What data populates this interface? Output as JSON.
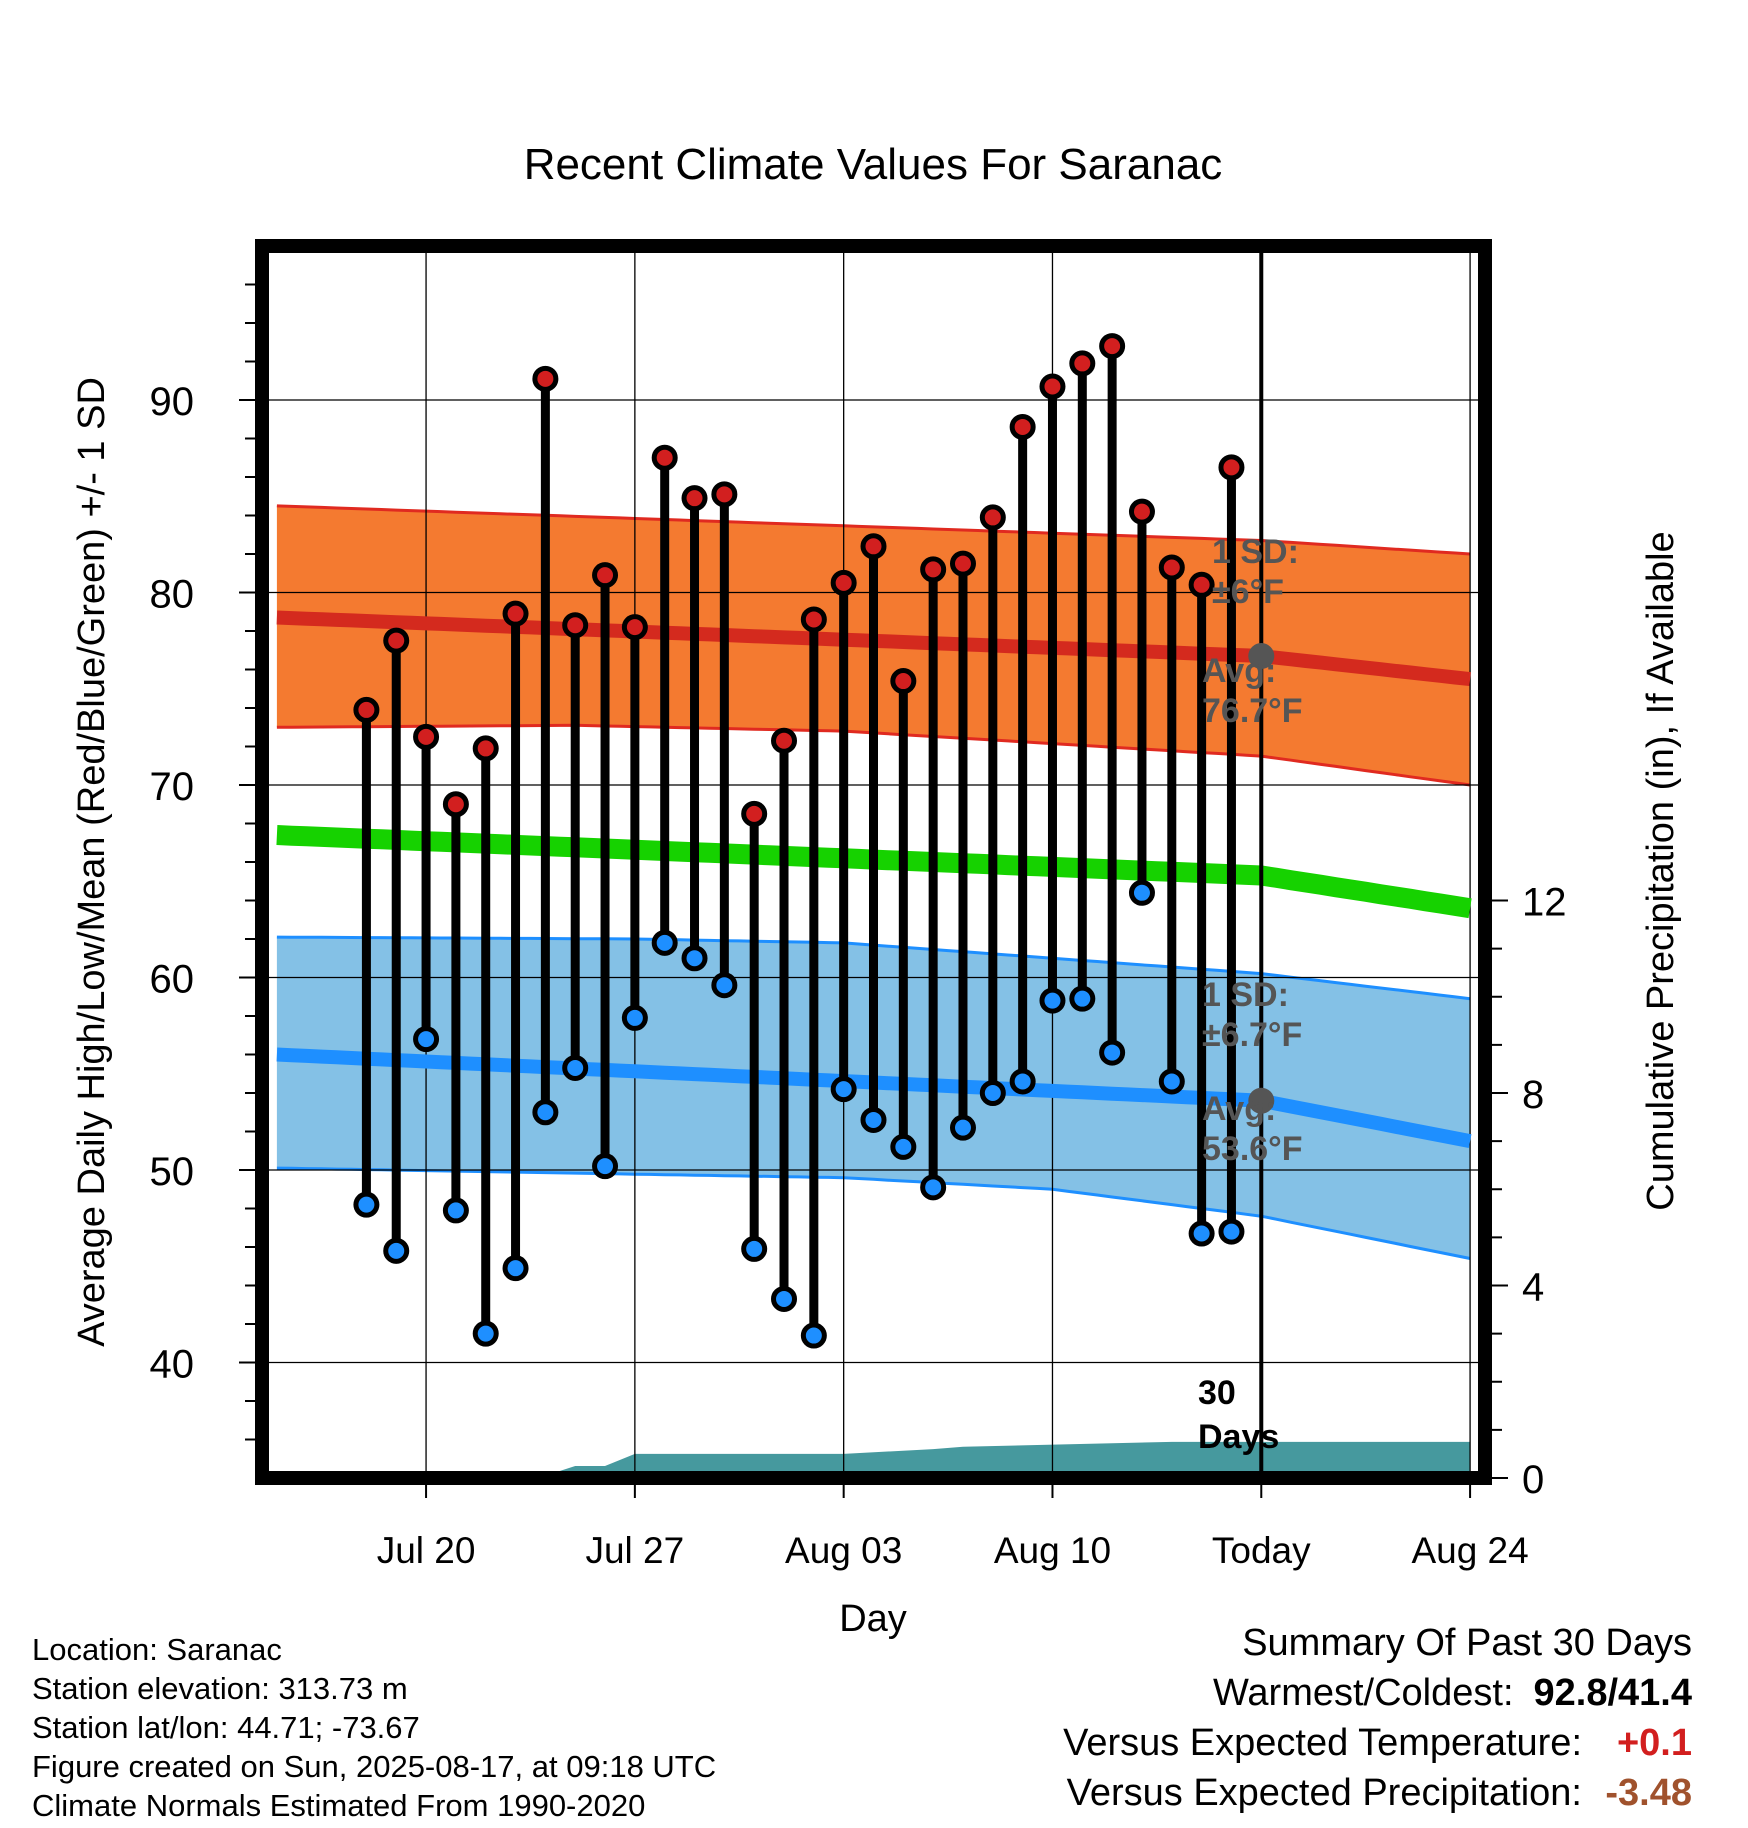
{
  "chart_data": {
    "type": "line",
    "title": "Recent Climate Values For Saranac",
    "xlabel": "Day",
    "ylabel_left": "Average Daily High/Low/Mean (Red/Blue/Green) +/- 1 SD",
    "ylabel_right": "Cumulative Precipitation (in), If Available",
    "x_range_days": [
      -33.5,
      7.5
    ],
    "x_ticks": [
      {
        "day": -28,
        "label": "Jul 20"
      },
      {
        "day": -21,
        "label": "Jul 27"
      },
      {
        "day": -14,
        "label": "Aug 03"
      },
      {
        "day": -7,
        "label": "Aug 10"
      },
      {
        "day": 0,
        "label": "Today"
      },
      {
        "day": 7,
        "label": "Aug 24"
      }
    ],
    "y_left_range": [
      34,
      98
    ],
    "y_left_ticks": [
      40,
      50,
      60,
      70,
      80,
      90
    ],
    "y_right_ticks": [
      0,
      4,
      8,
      12
    ],
    "y_right_scale_deg_per_inch": 2.5,
    "grid": true,
    "highs": [
      73.9,
      77.5,
      72.5,
      69.0,
      71.9,
      78.9,
      91.1,
      78.3,
      80.9,
      78.2,
      87.0,
      84.9,
      85.1,
      68.5,
      72.3,
      78.6,
      80.5,
      82.4,
      75.4,
      81.2,
      81.5,
      83.9,
      88.6,
      90.7,
      91.9,
      92.8,
      84.2,
      81.3,
      80.4,
      86.5
    ],
    "lows": [
      48.2,
      45.8,
      56.8,
      47.9,
      41.5,
      44.9,
      53.0,
      55.3,
      50.2,
      57.9,
      61.8,
      61.0,
      59.6,
      45.9,
      43.3,
      41.4,
      54.2,
      52.6,
      51.2,
      49.1,
      52.2,
      54.0,
      54.6,
      58.8,
      58.9,
      56.1,
      64.4,
      54.6,
      46.7,
      46.8
    ],
    "normal_high": {
      "avg_today": 76.7,
      "sd": 6.0,
      "x": [
        -33,
        0,
        7
      ],
      "y": [
        78.7,
        76.7,
        75.5
      ]
    },
    "normal_low": {
      "avg_today": 53.6,
      "sd": 6.7,
      "x": [
        -33,
        0,
        7
      ],
      "y": [
        56.0,
        53.6,
        51.5
      ]
    },
    "normal_mean": {
      "x": [
        -33,
        0,
        7
      ],
      "y": [
        67.4,
        65.3,
        63.6
      ]
    },
    "high_band": {
      "upper": {
        "x": [
          -33,
          0,
          7
        ],
        "y": [
          84.5,
          82.7,
          82.0
        ]
      },
      "lower": {
        "x": [
          -33,
          -23,
          -14,
          0,
          7
        ],
        "y": [
          73.0,
          73.1,
          72.8,
          71.5,
          70.0
        ]
      }
    },
    "low_band": {
      "upper": {
        "x": [
          -33,
          -21,
          -14,
          0,
          7
        ],
        "y": [
          62.1,
          62.0,
          61.8,
          60.2,
          58.9
        ]
      },
      "lower": {
        "x": [
          -33,
          -14,
          -7,
          0,
          7
        ],
        "y": [
          50.1,
          49.6,
          49.0,
          47.6,
          45.4
        ]
      }
    },
    "precip_cumulative": {
      "x": [
        -33,
        -28,
        -24,
        -23,
        -22,
        -21,
        -14,
        -11,
        -10,
        -3,
        7
      ],
      "y": [
        0.0,
        0.05,
        0.05,
        0.25,
        0.25,
        0.5,
        0.5,
        0.6,
        0.65,
        0.75,
        0.75
      ]
    },
    "today_line_label": "30\nDays",
    "annotations": {
      "high_sd": "1 SD:\n±6°F",
      "high_avg": "Avg:\n76.7°F",
      "low_sd": "1 SD:\n±6.7°F",
      "low_avg": "Avg:\n53.6°F"
    },
    "colors": {
      "high_band": "#f47a30",
      "high_line": "#d42a1e",
      "high_band_edge": "#e02a20",
      "low_band": "#84c1e6",
      "low_line": "#1e8fff",
      "low_band_edge": "#1e8fff",
      "mean_line": "#16d200",
      "precip": "#46999e",
      "high_dot": "#d21f1f",
      "low_dot": "#1e8fff",
      "avg_marker": "#555555",
      "annotation": "#555555"
    }
  },
  "info": {
    "location": "Location: Saranac",
    "elevation": "Station elevation: 313.73 m",
    "latlon": "Station lat/lon: 44.71; -73.67",
    "created": "Figure created on Sun, 2025-08-17, at 09:18 UTC",
    "normals": "Climate Normals Estimated From 1990-2020"
  },
  "summary": {
    "title": "Summary Of Past 30 Days",
    "warm_cold_label": "Warmest/Coldest:",
    "warm_cold_value": "92.8/41.4",
    "temp_label": "Versus Expected Temperature:",
    "temp_value": "+0.1",
    "precip_label": "Versus Expected Precipitation:",
    "precip_value": "-3.48",
    "temp_color": "#d21f1f",
    "precip_color": "#a0522d"
  }
}
